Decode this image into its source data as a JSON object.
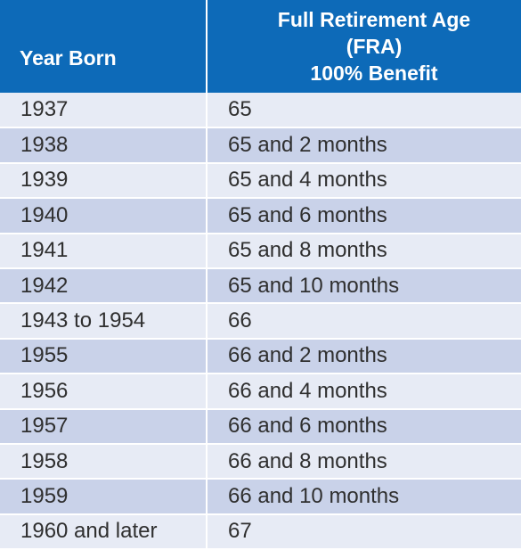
{
  "header": {
    "year_born": "Year Born",
    "fra_line1": "Full Retirement Age",
    "fra_line2": "(FRA)",
    "fra_line3": "100% Benefit"
  },
  "rows": [
    {
      "year": "1937",
      "fra": "65"
    },
    {
      "year": "1938",
      "fra": "65 and 2 months"
    },
    {
      "year": "1939",
      "fra": "65 and 4 months"
    },
    {
      "year": "1940",
      "fra": "65 and 6 months"
    },
    {
      "year": "1941",
      "fra": "65 and 8 months"
    },
    {
      "year": "1942",
      "fra": "65 and 10 months"
    },
    {
      "year": "1943 to 1954",
      "fra": "66"
    },
    {
      "year": "1955",
      "fra": "66 and 2 months"
    },
    {
      "year": "1956",
      "fra": "66 and 4 months"
    },
    {
      "year": "1957",
      "fra": "66 and 6 months"
    },
    {
      "year": "1958",
      "fra": "66 and 8 months"
    },
    {
      "year": "1959",
      "fra": "66 and 10 months"
    },
    {
      "year": "1960 and later",
      "fra": "67"
    }
  ],
  "colors": {
    "header_bg": "#0d6ab8",
    "row_light": "#e7ebf5",
    "row_dark": "#c9d2e9"
  }
}
